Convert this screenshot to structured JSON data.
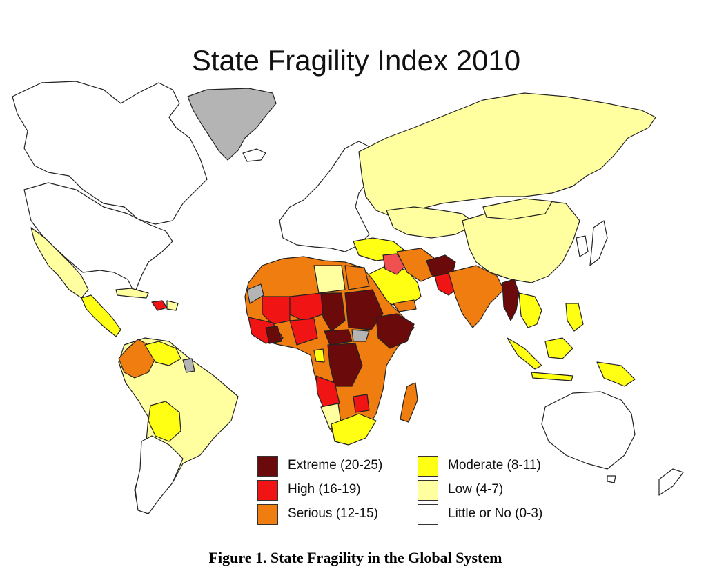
{
  "title": "State Fragility Index 2010",
  "caption": "Figure 1. State Fragility in the Global System",
  "legend": [
    {
      "label": "Extreme (20-25)",
      "color": "#6b0a0a"
    },
    {
      "label": "High (16-19)",
      "color": "#f01414"
    },
    {
      "label": "Serious (12-15)",
      "color": "#f07d10"
    },
    {
      "label": "Moderate (8-11)",
      "color": "#ffff14"
    },
    {
      "label": "Low (4-7)",
      "color": "#ffffa0"
    },
    {
      "label": "Little or No (0-3)",
      "color": "#ffffff"
    }
  ],
  "colors": {
    "extreme": "#6b0a0a",
    "high": "#f01414",
    "serious": "#f07d10",
    "moderate": "#ffff14",
    "low": "#ffffa0",
    "none": "#ffffff",
    "no_data": "#b4b4b4"
  }
}
